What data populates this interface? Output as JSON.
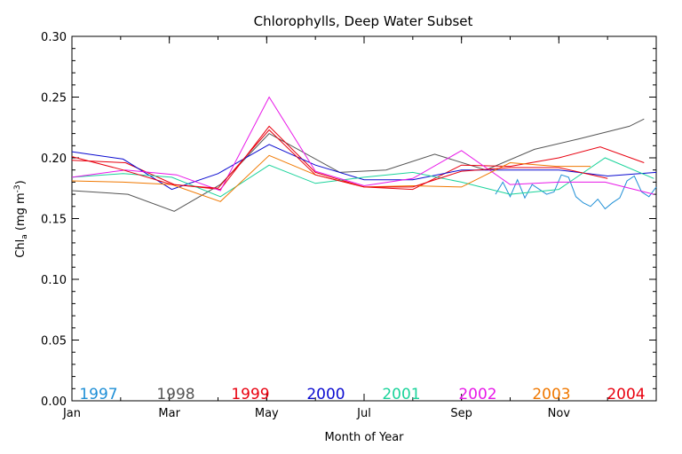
{
  "chart_data": {
    "type": "line",
    "title": "Chlorophylls, Deep Water Subset",
    "xlabel": "Month of Year",
    "ylabel": {
      "base": "Chl",
      "sub": "a",
      "pre_sup": " (mg m",
      "sup": "-3",
      "post": ")"
    },
    "ylim": [
      0.0,
      0.3
    ],
    "xlim": [
      1,
      13
    ],
    "yticks": [
      "0.00",
      "0.05",
      "0.10",
      "0.15",
      "0.20",
      "0.25",
      "0.30"
    ],
    "xticks": [
      {
        "value": 1,
        "label": "Jan"
      },
      {
        "value": 3,
        "label": "Mar"
      },
      {
        "value": 5,
        "label": "May"
      },
      {
        "value": 7,
        "label": "Jul"
      },
      {
        "value": 9,
        "label": "Sep"
      },
      {
        "value": 11,
        "label": "Nov"
      }
    ],
    "grid": false,
    "legend_placement": "bottom",
    "series": [
      {
        "name": "1997",
        "color": "#1f8fd6",
        "x": [
          9.7,
          9.85,
          10.0,
          10.15,
          10.3,
          10.45,
          10.6,
          10.75,
          10.9,
          11.05,
          11.2,
          11.35,
          11.5,
          11.65,
          11.8,
          11.95,
          12.1,
          12.25,
          12.4,
          12.55,
          12.7,
          12.85,
          13.0
        ],
        "y": [
          0.17,
          0.18,
          0.168,
          0.182,
          0.167,
          0.178,
          0.174,
          0.17,
          0.172,
          0.186,
          0.184,
          0.168,
          0.163,
          0.16,
          0.166,
          0.158,
          0.163,
          0.167,
          0.181,
          0.185,
          0.172,
          0.168,
          0.176
        ]
      },
      {
        "name": "1998",
        "color": "#555555",
        "x": [
          1.0,
          2.15,
          3.1,
          4.05,
          5.05,
          6.5,
          7.45,
          8.45,
          9.5,
          10.5,
          11.45,
          12.45,
          12.75
        ],
        "y": [
          0.173,
          0.17,
          0.156,
          0.178,
          0.22,
          0.188,
          0.19,
          0.203,
          0.19,
          0.207,
          0.216,
          0.226,
          0.232
        ]
      },
      {
        "name": "1999",
        "color": "#e8000f",
        "x": [
          1.0,
          2.1,
          3.1,
          4.05,
          5.05,
          6.0,
          7.0,
          8.0,
          9.0,
          10.0,
          11.0,
          11.85,
          12.75
        ],
        "y": [
          0.198,
          0.196,
          0.178,
          0.174,
          0.226,
          0.188,
          0.176,
          0.174,
          0.194,
          0.193,
          0.2,
          0.209,
          0.196
        ]
      },
      {
        "name": "2000",
        "color": "#0a0ad0",
        "x": [
          1.0,
          2.05,
          3.05,
          4.0,
          5.05,
          6.0,
          7.0,
          8.0,
          9.0,
          10.0,
          11.0,
          12.0,
          13.0
        ],
        "y": [
          0.205,
          0.199,
          0.174,
          0.187,
          0.211,
          0.194,
          0.182,
          0.182,
          0.19,
          0.19,
          0.19,
          0.185,
          0.188
        ]
      },
      {
        "name": "2001",
        "color": "#1ad39a",
        "x": [
          1.0,
          2.05,
          3.05,
          4.05,
          5.05,
          6.0,
          7.0,
          8.0,
          9.0,
          10.0,
          11.0,
          11.95,
          12.95
        ],
        "y": [
          0.184,
          0.187,
          0.184,
          0.168,
          0.194,
          0.179,
          0.184,
          0.188,
          0.18,
          0.17,
          0.174,
          0.2,
          0.183
        ]
      },
      {
        "name": "2002",
        "color": "#e818e8",
        "x": [
          1.0,
          2.1,
          3.15,
          4.05,
          5.05,
          6.0,
          7.0,
          8.0,
          9.0,
          10.0,
          11.0,
          11.95,
          12.95
        ],
        "y": [
          0.184,
          0.19,
          0.186,
          0.173,
          0.25,
          0.189,
          0.177,
          0.183,
          0.206,
          0.178,
          0.18,
          0.18,
          0.17
        ]
      },
      {
        "name": "2003",
        "color": "#f07800",
        "x": [
          1.0,
          2.05,
          3.05,
          4.05,
          5.05,
          6.0,
          7.0,
          8.0,
          9.0,
          10.0,
          10.95,
          11.65
        ],
        "y": [
          0.181,
          0.18,
          0.178,
          0.164,
          0.202,
          0.186,
          0.176,
          0.177,
          0.176,
          0.196,
          0.193,
          0.193
        ]
      },
      {
        "name": "2004",
        "color": "#e8000f",
        "x": [
          1.0,
          2.05,
          3.05,
          4.0,
          5.05,
          6.0,
          7.0,
          8.0,
          9.0,
          10.0,
          11.0,
          12.0
        ],
        "y": [
          0.201,
          0.19,
          0.178,
          0.175,
          0.223,
          0.186,
          0.176,
          0.176,
          0.189,
          0.192,
          0.192,
          0.183
        ]
      }
    ]
  }
}
